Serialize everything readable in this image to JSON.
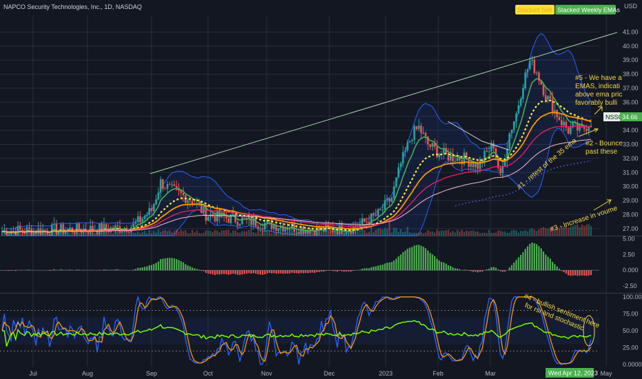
{
  "header": {
    "symbol_title": "NAPCO Security Technologies, Inc., 1D, NASDAQ",
    "currency": "USD",
    "legend_pills": [
      {
        "label": "Stacked Sell",
        "bg": "#f5e12b",
        "fg": "#f5a623"
      },
      {
        "label": "Stacked Weekly EMAs",
        "bg": "#4caf50",
        "fg": "#ffffff"
      }
    ]
  },
  "colors": {
    "background": "#131722",
    "grid": "#2a2e39",
    "up": "#26a69a",
    "down": "#ef5350",
    "ema_fast": "#4caf50",
    "ema_mid": "#ffeb3b",
    "ema_slow": "#ff9800",
    "ema_long": "#e91e63",
    "bollinger": "#2962ff",
    "annotation": "#f5d547",
    "trendline": "#a5d6a7"
  },
  "price_badge": {
    "symbol": "NSSC",
    "price": "34.66"
  },
  "date_badge": "Wed Apr 12, 2023",
  "annotations": [
    {
      "id": "a5",
      "lines": [
        "#5 - We have a",
        "EMAS, indicati",
        "above ema pric",
        "favorably bulli"
      ]
    },
    {
      "id": "a2",
      "lines": [
        "#2 - Bounce",
        "past these"
      ]
    },
    {
      "id": "a1",
      "lines": [
        "#1 - retest of the 35 ema"
      ]
    },
    {
      "id": "a3",
      "lines": [
        "#3 - Increase in voume"
      ]
    },
    {
      "id": "a4",
      "lines": [
        "#4 - bullish sentiment here",
        "for rsi and stochastic"
      ]
    }
  ],
  "chart_data": [
    {
      "type": "candlestick",
      "title": "NAPCO Security Technologies, Inc., 1D, NASDAQ",
      "ylabel": "USD",
      "ylim": [
        26.5,
        42.2
      ],
      "y_ticks": [
        "41.00",
        "40.00",
        "39.00",
        "38.00",
        "37.00",
        "36.00",
        "35.00",
        "34.00",
        "33.00",
        "32.00",
        "31.00",
        "30.00",
        "29.00",
        "28.00",
        "27.00"
      ],
      "x_ticks": [
        "Jul",
        "Aug",
        "Sep",
        "Oct",
        "Nov",
        "Dec",
        "2023",
        "Feb",
        "Mar",
        "May"
      ],
      "price_path_approx": [
        [
          0,
          26.8
        ],
        [
          25,
          26.9
        ],
        [
          50,
          27.0
        ],
        [
          58,
          27.2
        ],
        [
          66,
          28.3
        ],
        [
          70,
          30.3
        ],
        [
          74,
          29.8
        ],
        [
          78,
          29.5
        ],
        [
          84,
          29.0
        ],
        [
          90,
          28.0
        ],
        [
          98,
          27.8
        ],
        [
          106,
          27.6
        ],
        [
          114,
          27.4
        ],
        [
          124,
          27.2
        ],
        [
          134,
          27.0
        ],
        [
          144,
          26.9
        ],
        [
          156,
          27.1
        ],
        [
          166,
          28.0
        ],
        [
          172,
          29.2
        ],
        [
          176,
          31.6
        ],
        [
          181,
          33.7
        ],
        [
          184,
          34.2
        ],
        [
          188,
          33.0
        ],
        [
          192,
          32.5
        ],
        [
          198,
          32.1
        ],
        [
          204,
          32.0
        ],
        [
          210,
          31.5
        ],
        [
          214,
          32.4
        ],
        [
          217,
          33.0
        ],
        [
          220,
          30.6
        ],
        [
          224,
          33.8
        ],
        [
          227,
          35.2
        ],
        [
          230,
          37.4
        ],
        [
          233,
          38.9
        ],
        [
          236,
          38.2
        ],
        [
          240,
          36.5
        ],
        [
          244,
          35.4
        ],
        [
          247,
          34.6
        ],
        [
          250,
          34.0
        ],
        [
          252,
          34.2
        ],
        [
          256,
          34.0
        ],
        [
          260,
          34.66
        ]
      ],
      "volume_rising_into_end": true
    },
    {
      "type": "histogram",
      "name": "momentum",
      "y_ticks": [
        "5.00",
        "2.50",
        "0.000",
        "-2.50"
      ],
      "ylim": [
        -3.6,
        5.4
      ]
    },
    {
      "type": "line",
      "name": "oscillators",
      "y_ticks": [
        "100.00",
        "75.00",
        "50.00",
        "25.00",
        "0.0000"
      ],
      "ylim": [
        -3,
        105
      ]
    }
  ]
}
